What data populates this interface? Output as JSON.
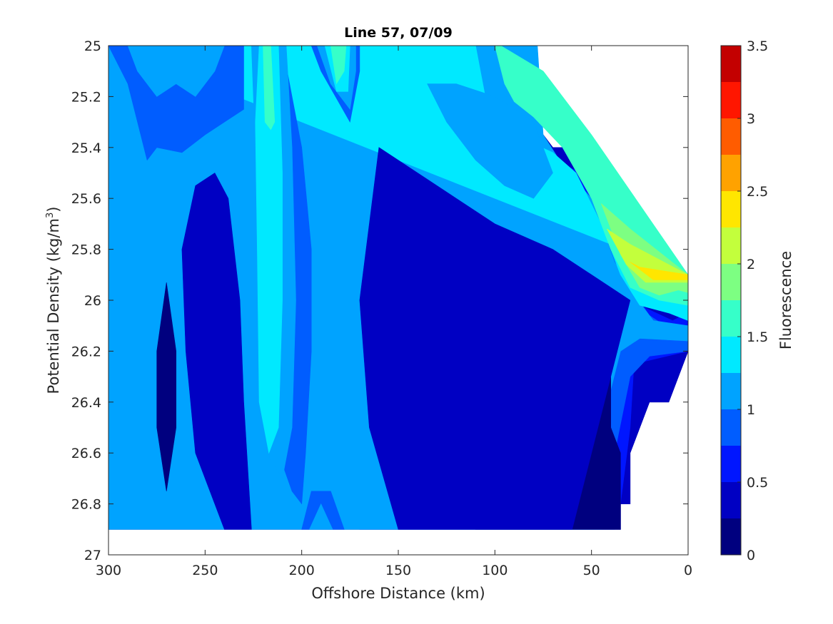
{
  "chart_data": {
    "type": "contourf",
    "title": "Line 57, 07/09",
    "xlabel": "Offshore Distance (km)",
    "ylabel_prefix": "Potential Density (kg/m",
    "ylabel_sup": "3",
    "ylabel_suffix": ")",
    "xlim": [
      300,
      0
    ],
    "xticks": [
      300,
      250,
      200,
      150,
      100,
      50,
      0
    ],
    "ylim": [
      25,
      27
    ],
    "yticks": [
      25,
      25.2,
      25.4,
      25.6,
      25.8,
      26,
      26.2,
      26.4,
      26.6,
      26.8,
      27
    ],
    "y_direction": "reverse",
    "colorbar": {
      "label": "Fluorescence",
      "range": [
        0,
        3.5
      ],
      "ticks": [
        0,
        0.5,
        1,
        1.5,
        2,
        2.5,
        3,
        3.5
      ],
      "levels": [
        0,
        0.25,
        0.5,
        0.75,
        1,
        1.25,
        1.5,
        1.75,
        2,
        2.25,
        2.5,
        2.75,
        3,
        3.25,
        3.5
      ],
      "colors": [
        "#00007f",
        "#0000c3",
        "#0016ff",
        "#005dff",
        "#00a3ff",
        "#00e9ff",
        "#36ffc9",
        "#7dff82",
        "#c3ff3c",
        "#ffe600",
        "#ffa200",
        "#ff5c00",
        "#ff1600",
        "#c30000"
      ]
    },
    "regions": [
      {
        "level": 0.25,
        "points": [
          [
            300,
            25
          ],
          [
            97,
            25
          ],
          [
            88,
            25.2
          ],
          [
            80,
            25.3
          ],
          [
            70,
            25.4
          ],
          [
            54,
            25.4
          ],
          [
            45,
            25.6
          ],
          [
            38,
            25.8
          ],
          [
            30,
            25.9
          ],
          [
            0,
            25.9
          ],
          [
            0,
            26.2
          ],
          [
            10,
            26.4
          ],
          [
            20,
            26.4
          ],
          [
            30,
            26.6
          ],
          [
            30,
            26.8
          ],
          [
            35,
            26.8
          ],
          [
            35,
            26.9
          ],
          [
            300,
            26.9
          ]
        ]
      },
      {
        "level": 0.5,
        "points": [
          [
            300,
            25
          ],
          [
            82,
            25
          ],
          [
            82,
            25.3
          ],
          [
            70,
            25.45
          ],
          [
            55,
            25.5
          ],
          [
            45,
            25.7
          ],
          [
            35,
            25.9
          ],
          [
            25,
            26.02
          ],
          [
            8,
            26.08
          ],
          [
            0,
            26.05
          ],
          [
            0,
            26.2
          ],
          [
            28,
            26.25
          ],
          [
            30,
            26.5
          ],
          [
            35,
            26.8
          ],
          [
            35,
            26.9
          ],
          [
            140,
            26.9
          ],
          [
            170,
            26.9
          ],
          [
            175,
            26.3
          ],
          [
            185,
            26.0
          ],
          [
            190,
            25.7
          ],
          [
            200,
            25.3
          ],
          [
            230,
            25.2
          ],
          [
            260,
            25.3
          ],
          [
            280,
            25.4
          ],
          [
            300,
            25.5
          ]
        ]
      },
      {
        "level": 0.75,
        "points": [
          [
            300,
            25
          ],
          [
            80,
            25
          ],
          [
            80,
            25.3
          ],
          [
            68,
            25.45
          ],
          [
            55,
            25.55
          ],
          [
            40,
            25.8
          ],
          [
            30,
            25.95
          ],
          [
            20,
            26.06
          ],
          [
            8,
            26.12
          ],
          [
            0,
            26.16
          ],
          [
            0,
            26.2
          ],
          [
            20,
            26.22
          ],
          [
            30,
            26.3
          ],
          [
            38,
            26.6
          ],
          [
            38,
            26.9
          ],
          [
            140,
            26.9
          ],
          [
            150,
            26.9
          ],
          [
            155,
            26.3
          ],
          [
            160,
            26.0
          ],
          [
            175,
            25.6
          ],
          [
            205,
            25.3
          ],
          [
            235,
            25.25
          ],
          [
            270,
            25.35
          ],
          [
            300,
            25.45
          ]
        ]
      },
      {
        "level": 1.0,
        "points": [
          [
            300,
            25
          ],
          [
            78,
            25
          ],
          [
            75,
            25.35
          ],
          [
            64,
            25.48
          ],
          [
            50,
            25.6
          ],
          [
            38,
            25.85
          ],
          [
            28,
            25.98
          ],
          [
            18,
            26.08
          ],
          [
            0,
            26.1
          ],
          [
            0,
            26.16
          ],
          [
            25,
            26.15
          ],
          [
            35,
            26.2
          ],
          [
            45,
            26.5
          ],
          [
            45,
            26.9
          ],
          [
            300,
            26.9
          ]
        ]
      },
      {
        "level": 1.25,
        "points": [
          [
            300,
            25
          ],
          [
            110,
            25
          ],
          [
            105,
            25.2
          ],
          [
            100,
            25.3
          ],
          [
            90,
            25.35
          ],
          [
            70,
            25.42
          ],
          [
            58,
            25.5
          ],
          [
            45,
            25.7
          ],
          [
            35,
            25.9
          ],
          [
            25,
            26.02
          ],
          [
            10,
            26.05
          ],
          [
            0,
            26.08
          ],
          [
            0,
            25.9
          ]
        ]
      },
      {
        "level": 1.5,
        "points": [
          [
            100,
            25
          ],
          [
            95,
            25.15
          ],
          [
            90,
            25.22
          ],
          [
            80,
            25.28
          ],
          [
            65,
            25.4
          ],
          [
            50,
            25.6
          ],
          [
            40,
            25.8
          ],
          [
            30,
            25.95
          ],
          [
            15,
            26.0
          ],
          [
            0,
            26.02
          ],
          [
            0,
            25.9
          ],
          [
            50,
            25.35
          ],
          [
            75,
            25.1
          ],
          [
            97,
            25
          ]
        ]
      },
      {
        "level": 1.75,
        "points": [
          [
            45,
            25.62
          ],
          [
            35,
            25.82
          ],
          [
            25,
            25.95
          ],
          [
            15,
            25.98
          ],
          [
            5,
            25.96
          ],
          [
            0,
            25.97
          ],
          [
            0,
            25.9
          ],
          [
            30,
            25.72
          ]
        ]
      },
      {
        "level": 2.0,
        "points": [
          [
            42,
            25.72
          ],
          [
            32,
            25.86
          ],
          [
            22,
            25.93
          ],
          [
            10,
            25.93
          ],
          [
            0,
            25.93
          ],
          [
            0,
            25.9
          ],
          [
            30,
            25.78
          ]
        ]
      },
      {
        "level": 2.25,
        "points": [
          [
            30,
            25.85
          ],
          [
            18,
            25.92
          ],
          [
            8,
            25.92
          ],
          [
            0,
            25.92
          ],
          [
            0,
            25.9
          ],
          [
            25,
            25.87
          ]
        ]
      }
    ],
    "overlay_regions": [
      {
        "level": 0.25,
        "points": [
          [
            245,
            25.5
          ],
          [
            238,
            25.6
          ],
          [
            232,
            26.0
          ],
          [
            230,
            26.4
          ],
          [
            226,
            26.9
          ],
          [
            240,
            26.9
          ],
          [
            255,
            26.6
          ],
          [
            260,
            26.2
          ],
          [
            262,
            25.8
          ],
          [
            255,
            25.55
          ]
        ]
      },
      {
        "level": 0.0,
        "points": [
          [
            270,
            25.93
          ],
          [
            265,
            26.2
          ],
          [
            265,
            26.5
          ],
          [
            270,
            26.75
          ],
          [
            275,
            26.5
          ],
          [
            275,
            26.2
          ]
        ]
      },
      {
        "level": 0.0,
        "points": [
          [
            140,
            25.8
          ],
          [
            135,
            26.1
          ],
          [
            132,
            26.4
          ],
          [
            135,
            26.7
          ],
          [
            142,
            26.9
          ],
          [
            148,
            26.5
          ],
          [
            148,
            26.1
          ],
          [
            145,
            25.9
          ]
        ]
      },
      {
        "level": 0.0,
        "points": [
          [
            95,
            26.0
          ],
          [
            75,
            26.08
          ],
          [
            50,
            26.1
          ],
          [
            40,
            26.2
          ],
          [
            40,
            26.5
          ],
          [
            35,
            26.6
          ],
          [
            35,
            26.9
          ],
          [
            110,
            26.9
          ],
          [
            110,
            26.4
          ],
          [
            105,
            26.1
          ]
        ]
      },
      {
        "level": 0.25,
        "points": [
          [
            160,
            25.4
          ],
          [
            140,
            25.5
          ],
          [
            120,
            25.6
          ],
          [
            100,
            25.7
          ],
          [
            70,
            25.8
          ],
          [
            50,
            25.9
          ],
          [
            30,
            26.0
          ],
          [
            40,
            26.3
          ],
          [
            60,
            26.9
          ],
          [
            150,
            26.9
          ],
          [
            165,
            26.5
          ],
          [
            170,
            26.0
          ]
        ]
      },
      {
        "level": 0.75,
        "points": [
          [
            210,
            25
          ],
          [
            205,
            25.2
          ],
          [
            200,
            25.4
          ],
          [
            195,
            25.8
          ],
          [
            195,
            26.2
          ],
          [
            198,
            26.6
          ],
          [
            200,
            26.8
          ],
          [
            205,
            26.75
          ],
          [
            212,
            26.6
          ],
          [
            215,
            26.2
          ],
          [
            218,
            25.8
          ],
          [
            222,
            25.2
          ],
          [
            225,
            25
          ]
        ]
      },
      {
        "level": 1.0,
        "points": [
          [
            208,
            25
          ],
          [
            205,
            25.4
          ],
          [
            203,
            26.0
          ],
          [
            205,
            26.5
          ],
          [
            210,
            26.7
          ],
          [
            218,
            26.6
          ],
          [
            222,
            26.0
          ],
          [
            224,
            25.4
          ],
          [
            226,
            25
          ]
        ]
      },
      {
        "level": 1.25,
        "points": [
          [
            212,
            25
          ],
          [
            210,
            25.5
          ],
          [
            210,
            26.0
          ],
          [
            212,
            26.5
          ],
          [
            217,
            26.6
          ],
          [
            222,
            26.4
          ],
          [
            223,
            25.8
          ],
          [
            224,
            25.3
          ],
          [
            222,
            25
          ]
        ]
      },
      {
        "level": 1.5,
        "points": [
          [
            216,
            25
          ],
          [
            214,
            25.3
          ],
          [
            216,
            25.33
          ],
          [
            219,
            25.3
          ],
          [
            220,
            25
          ]
        ]
      },
      {
        "level": 0.75,
        "points": [
          [
            195,
            25
          ],
          [
            190,
            25.1
          ],
          [
            175,
            25.3
          ],
          [
            170,
            25.1
          ],
          [
            170,
            25
          ]
        ]
      },
      {
        "level": 1.0,
        "points": [
          [
            192,
            25
          ],
          [
            185,
            25.15
          ],
          [
            175,
            25.25
          ],
          [
            172,
            25.1
          ],
          [
            172,
            25
          ]
        ]
      },
      {
        "level": 1.25,
        "points": [
          [
            188,
            25
          ],
          [
            182,
            25.18
          ],
          [
            176,
            25.18
          ],
          [
            175,
            25
          ]
        ]
      },
      {
        "level": 1.5,
        "points": [
          [
            185,
            25
          ],
          [
            182,
            25.15
          ],
          [
            178,
            25.1
          ],
          [
            177,
            25
          ]
        ]
      },
      {
        "level": 0.75,
        "points": [
          [
            200,
            26.9
          ],
          [
            195,
            26.75
          ],
          [
            185,
            26.75
          ],
          [
            178,
            26.9
          ]
        ]
      },
      {
        "level": 1.0,
        "points": [
          [
            196,
            26.9
          ],
          [
            190,
            26.8
          ],
          [
            184,
            26.9
          ]
        ]
      },
      {
        "level": 0.75,
        "points": [
          [
            300,
            25
          ],
          [
            290,
            25.15
          ],
          [
            280,
            25.45
          ],
          [
            275,
            25.4
          ],
          [
            262,
            25.42
          ],
          [
            250,
            25.35
          ],
          [
            240,
            25.3
          ],
          [
            230,
            25.25
          ],
          [
            230,
            25
          ]
        ]
      },
      {
        "level": 1.0,
        "points": [
          [
            290,
            25
          ],
          [
            285,
            25.1
          ],
          [
            275,
            25.2
          ],
          [
            265,
            25.15
          ],
          [
            255,
            25.2
          ],
          [
            245,
            25.1
          ],
          [
            240,
            25
          ]
        ]
      },
      {
        "level": 1.0,
        "points": [
          [
            135,
            25.15
          ],
          [
            125,
            25.3
          ],
          [
            110,
            25.45
          ],
          [
            95,
            25.55
          ],
          [
            80,
            25.6
          ],
          [
            70,
            25.5
          ],
          [
            80,
            25.3
          ],
          [
            100,
            25.2
          ],
          [
            120,
            25.15
          ]
        ]
      }
    ]
  }
}
